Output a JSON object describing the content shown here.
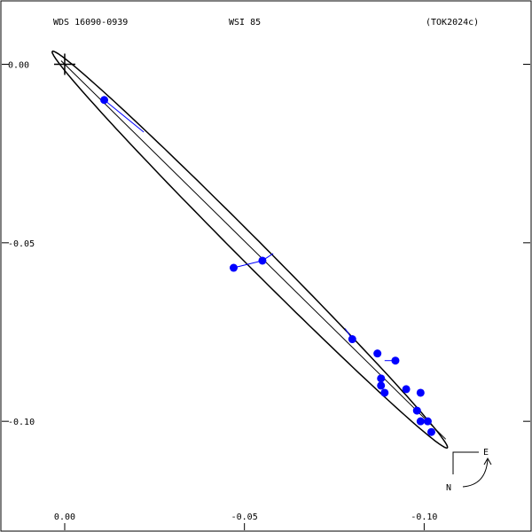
{
  "header": {
    "wds": "WDS 16090-0939",
    "discoverer": "WSI  85",
    "reference": "(TOK2024c)"
  },
  "compass": {
    "east": "E",
    "north": "N"
  },
  "colors": {
    "frame": "#000000",
    "orbit": "#000000",
    "observation": "#0000ff",
    "residual": "#0000ff"
  },
  "chart_data": {
    "type": "scatter",
    "title": "",
    "xlabel": "",
    "ylabel": "",
    "xlim": [
      0.018,
      -0.13
    ],
    "ylim": [
      0.018,
      -0.131
    ],
    "x_ticks": [
      {
        "value": -0.1,
        "label": "-0.10"
      },
      {
        "value": -0.05,
        "label": "-0.05"
      },
      {
        "value": 0.0,
        "label": "0.00"
      }
    ],
    "y_ticks": [
      {
        "value": 0.0,
        "label": "0.00"
      },
      {
        "value": -0.05,
        "label": "-0.05"
      },
      {
        "value": -0.1,
        "label": "-0.10"
      }
    ],
    "grid": false,
    "primary_marker": {
      "x": 0.0,
      "y": 0.0,
      "symbol": "cross"
    },
    "orbit": {
      "shape": "ellipse",
      "center": [
        -0.0515,
        -0.0519
      ],
      "a": 0.0781,
      "b": 0.0034,
      "angle_deg": 45.3,
      "line_of_nodes": [
        [
          0.001,
          0.001
        ],
        [
          -0.106,
          -0.105
        ]
      ]
    },
    "observations": [
      {
        "x": -0.011,
        "y": -0.01,
        "orbit_x": -0.022,
        "orbit_y": -0.019
      },
      {
        "x": -0.055,
        "y": -0.055,
        "orbit_x": -0.058,
        "orbit_y": -0.053
      },
      {
        "x": -0.047,
        "y": -0.057,
        "orbit_x": -0.055,
        "orbit_y": -0.055
      },
      {
        "x": -0.08,
        "y": -0.077,
        "orbit_x": -0.078,
        "orbit_y": -0.074
      },
      {
        "x": -0.087,
        "y": -0.081,
        "orbit_x": -0.087,
        "orbit_y": -0.081
      },
      {
        "x": -0.092,
        "y": -0.083,
        "orbit_x": -0.089,
        "orbit_y": -0.083
      },
      {
        "x": -0.088,
        "y": -0.088,
        "orbit_x": -0.088,
        "orbit_y": -0.088
      },
      {
        "x": -0.088,
        "y": -0.09,
        "orbit_x": -0.088,
        "orbit_y": -0.09
      },
      {
        "x": -0.095,
        "y": -0.091,
        "orbit_x": -0.095,
        "orbit_y": -0.091
      },
      {
        "x": -0.089,
        "y": -0.092,
        "orbit_x": -0.089,
        "orbit_y": -0.092
      },
      {
        "x": -0.099,
        "y": -0.092,
        "orbit_x": -0.099,
        "orbit_y": -0.092
      },
      {
        "x": -0.098,
        "y": -0.097,
        "orbit_x": -0.098,
        "orbit_y": -0.097
      },
      {
        "x": -0.101,
        "y": -0.1,
        "orbit_x": -0.101,
        "orbit_y": -0.1
      },
      {
        "x": -0.099,
        "y": -0.1,
        "orbit_x": -0.099,
        "orbit_y": -0.1
      },
      {
        "x": -0.102,
        "y": -0.103,
        "orbit_x": -0.102,
        "orbit_y": -0.103
      }
    ]
  }
}
